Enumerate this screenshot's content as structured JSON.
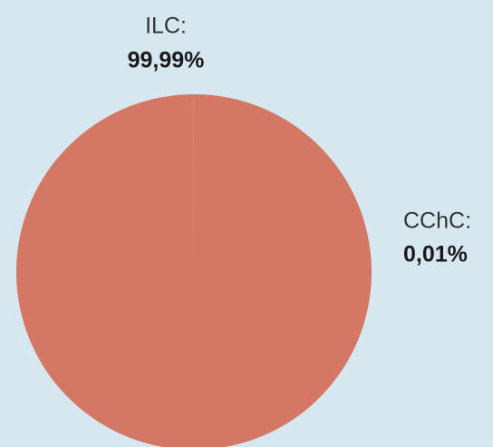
{
  "chart_data": {
    "type": "pie",
    "categories": [
      "ILC:",
      "CChC:"
    ],
    "values": [
      99.99,
      0.01
    ],
    "value_labels": [
      "99,99%",
      "0,01%"
    ],
    "colors": [
      "#d47764",
      "#f7c872"
    ]
  }
}
